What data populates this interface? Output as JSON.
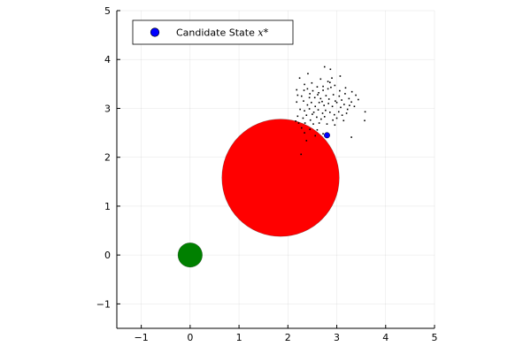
{
  "chart_data": {
    "type": "scatter",
    "title": "",
    "xlabel": "",
    "ylabel": "",
    "xlim": [
      -1.5,
      5
    ],
    "ylim": [
      -1.5,
      5
    ],
    "xticks": [
      -1,
      0,
      1,
      2,
      3,
      4,
      5
    ],
    "yticks": [
      -1,
      0,
      1,
      2,
      3,
      4,
      5
    ],
    "xtick_labels": [
      "−1",
      "0",
      "1",
      "2",
      "3",
      "4",
      "5"
    ],
    "ytick_labels": [
      "−1",
      "0",
      "1",
      "2",
      "3",
      "4",
      "5"
    ],
    "grid": true,
    "aspect": "equal",
    "legend": {
      "position": "top-left",
      "entries": [
        {
          "label_text": "Candidate State ",
          "label_math": "x*",
          "marker": "circle",
          "color": "#0000ff"
        }
      ]
    },
    "obstacle": {
      "center": [
        1.85,
        1.58
      ],
      "radius": 1.2,
      "color": "#ff0000"
    },
    "start": {
      "center": [
        0.0,
        0.0
      ],
      "radius": 0.25,
      "color": "#008000"
    },
    "candidate_state": {
      "x": 2.8,
      "y": 2.45,
      "color": "#0000ff"
    },
    "samples": {
      "color": "#000000",
      "points": [
        [
          2.24,
          3.62
        ],
        [
          2.41,
          3.71
        ],
        [
          2.75,
          3.85
        ],
        [
          2.87,
          3.8
        ],
        [
          3.07,
          3.66
        ],
        [
          2.67,
          3.6
        ],
        [
          2.82,
          3.55
        ],
        [
          2.86,
          3.53
        ],
        [
          2.34,
          3.49
        ],
        [
          2.49,
          3.52
        ],
        [
          2.72,
          3.45
        ],
        [
          2.82,
          3.4
        ],
        [
          2.88,
          3.43
        ],
        [
          2.96,
          3.47
        ],
        [
          3.31,
          3.34
        ],
        [
          2.18,
          3.38
        ],
        [
          2.33,
          3.37
        ],
        [
          2.4,
          3.4
        ],
        [
          2.51,
          3.36
        ],
        [
          2.63,
          3.32
        ],
        [
          2.72,
          3.37
        ],
        [
          2.93,
          3.28
        ],
        [
          3.05,
          3.25
        ],
        [
          3.17,
          3.3
        ],
        [
          3.39,
          3.27
        ],
        [
          2.2,
          3.27
        ],
        [
          2.28,
          3.25
        ],
        [
          2.45,
          3.3
        ],
        [
          2.55,
          3.22
        ],
        [
          2.61,
          3.28
        ],
        [
          2.67,
          3.2
        ],
        [
          2.78,
          3.26
        ],
        [
          2.84,
          3.19
        ],
        [
          3.0,
          3.12
        ],
        [
          3.1,
          3.17
        ],
        [
          3.25,
          3.2
        ],
        [
          3.3,
          3.13
        ],
        [
          3.44,
          3.18
        ],
        [
          2.18,
          3.13
        ],
        [
          2.32,
          3.15
        ],
        [
          2.4,
          3.07
        ],
        [
          2.48,
          3.12
        ],
        [
          2.56,
          3.04
        ],
        [
          2.64,
          3.12
        ],
        [
          2.74,
          3.06
        ],
        [
          2.83,
          3.1
        ],
        [
          2.91,
          3.04
        ],
        [
          2.97,
          3.15
        ],
        [
          3.08,
          3.02
        ],
        [
          3.15,
          3.08
        ],
        [
          3.22,
          2.98
        ],
        [
          3.36,
          3.04
        ],
        [
          2.25,
          2.98
        ],
        [
          2.34,
          2.95
        ],
        [
          2.44,
          2.99
        ],
        [
          2.53,
          2.92
        ],
        [
          2.62,
          2.97
        ],
        [
          2.71,
          2.9
        ],
        [
          2.77,
          2.96
        ],
        [
          2.86,
          2.92
        ],
        [
          2.95,
          2.87
        ],
        [
          3.04,
          2.93
        ],
        [
          3.11,
          2.86
        ],
        [
          3.2,
          2.9
        ],
        [
          3.58,
          2.93
        ],
        [
          2.2,
          2.84
        ],
        [
          2.31,
          2.8
        ],
        [
          2.38,
          2.86
        ],
        [
          2.46,
          2.76
        ],
        [
          2.59,
          2.82
        ],
        [
          2.68,
          2.78
        ],
        [
          2.75,
          2.83
        ],
        [
          2.92,
          2.76
        ],
        [
          3.0,
          2.8
        ],
        [
          3.14,
          2.75
        ],
        [
          3.57,
          2.75
        ],
        [
          2.16,
          2.74
        ],
        [
          2.22,
          2.7
        ],
        [
          2.35,
          2.7
        ],
        [
          2.52,
          2.68
        ],
        [
          2.64,
          2.7
        ],
        [
          2.8,
          2.68
        ],
        [
          2.96,
          2.66
        ],
        [
          2.28,
          2.6
        ],
        [
          2.45,
          2.57
        ],
        [
          2.6,
          2.56
        ],
        [
          2.34,
          2.5
        ],
        [
          2.56,
          2.44
        ],
        [
          2.72,
          2.48
        ],
        [
          3.3,
          2.41
        ],
        [
          2.38,
          2.34
        ],
        [
          2.27,
          2.06
        ],
        [
          2.9,
          3.62
        ],
        [
          3.18,
          3.42
        ],
        [
          2.6,
          3.44
        ],
        [
          3.26,
          3.06
        ],
        [
          2.5,
          2.88
        ],
        [
          3.06,
          3.36
        ],
        [
          2.7,
          3.14
        ],
        [
          2.44,
          3.22
        ]
      ]
    }
  }
}
